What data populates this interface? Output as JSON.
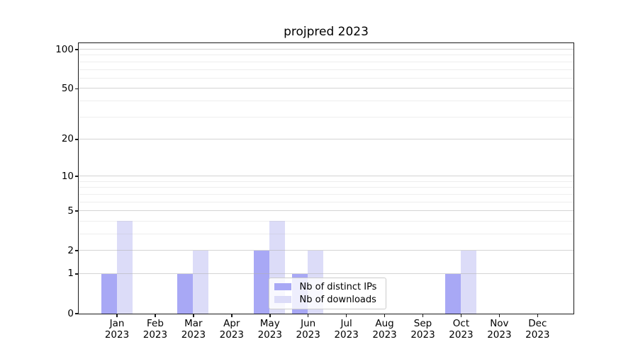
{
  "chart_data": {
    "type": "bar",
    "title": "projpred 2023",
    "categories": [
      "Jan 2023",
      "Feb 2023",
      "Mar 2023",
      "Apr 2023",
      "May 2023",
      "Jun 2023",
      "Jul 2023",
      "Aug 2023",
      "Sep 2023",
      "Oct 2023",
      "Nov 2023",
      "Dec 2023"
    ],
    "series": [
      {
        "name": "Nb of distinct IPs",
        "color": "#a8a8f5",
        "values": [
          1,
          0,
          1,
          0,
          2,
          1,
          0,
          0,
          0,
          1,
          0,
          0
        ]
      },
      {
        "name": "Nb of downloads",
        "color": "#dcdcf8",
        "values": [
          4,
          0,
          2,
          0,
          4,
          2,
          0,
          0,
          0,
          2,
          0,
          0
        ]
      }
    ],
    "yscale": "log1p",
    "ylim": [
      0,
      112
    ],
    "yticks": [
      0,
      1,
      2,
      5,
      10,
      20,
      50,
      100
    ],
    "yticks_minor": [
      3,
      4,
      6,
      7,
      8,
      9,
      30,
      40,
      60,
      70,
      80,
      90
    ],
    "grid": "both",
    "legend_position": "lower-center",
    "colors": {
      "grid_major": "rgba(176,176,176,0.55)",
      "grid_minor": "rgba(176,176,176,0.22)",
      "spine": "#1a1a1a",
      "legend_border": "#cccccc",
      "legend_bg": "rgba(255,255,255,0.8)"
    }
  }
}
